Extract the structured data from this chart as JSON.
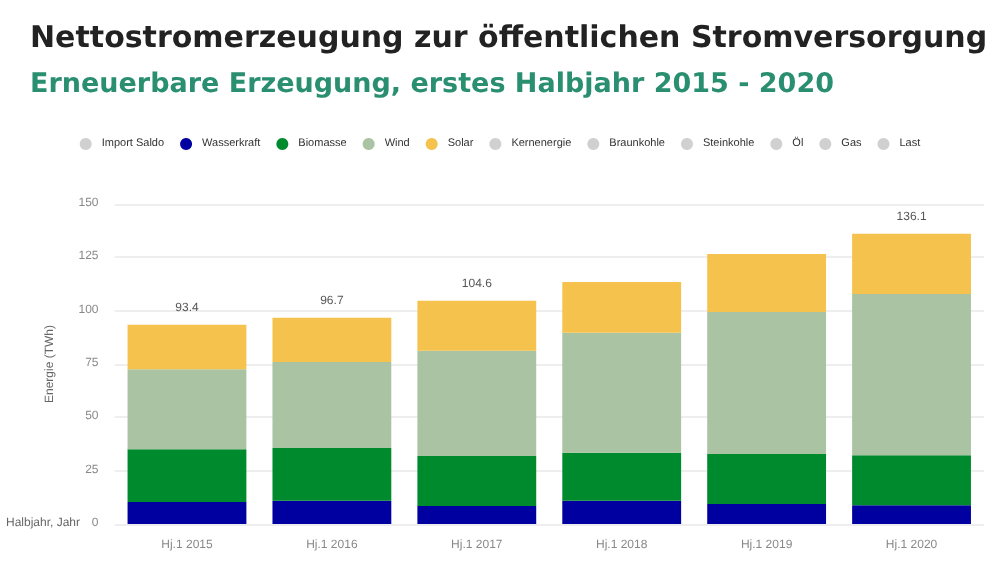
{
  "chart_data": {
    "type": "bar",
    "title": "Nettostromerzeugung zur öffentlichen Stromversorgung",
    "subtitle": "Erneuerbare Erzeugung, erstes Halbjahr 2015 - 2020",
    "xlabel": "Halbjahr, Jahr",
    "ylabel": "Energie (TWh)",
    "categories": [
      "Hj.1 2015",
      "Hj.1 2016",
      "Hj.1 2017",
      "Hj.1 2018",
      "Hj.1 2019",
      "Hj.1 2020"
    ],
    "series": [
      {
        "name": "Import Saldo",
        "color": "#d0d0d0",
        "values": [
          null,
          null,
          null,
          null,
          null,
          null
        ]
      },
      {
        "name": "Wasserkraft",
        "color": "#0000a0",
        "values": [
          10.3,
          10.9,
          8.4,
          10.9,
          9.4,
          8.8
        ]
      },
      {
        "name": "Biomasse",
        "color": "#008a2e",
        "values": [
          24.7,
          24.7,
          23.5,
          22.5,
          23.4,
          23.4
        ]
      },
      {
        "name": "Wind",
        "color": "#aac3a3",
        "values": [
          37.5,
          40.3,
          49.3,
          56.3,
          66.6,
          75.6
        ]
      },
      {
        "name": "Solar",
        "color": "#f6c24e",
        "values": [
          20.9,
          20.8,
          23.4,
          23.7,
          27.2,
          28.3
        ]
      },
      {
        "name": "Kernenergie",
        "color": "#d0d0d0",
        "values": [
          null,
          null,
          null,
          null,
          null,
          null
        ]
      },
      {
        "name": "Braunkohle",
        "color": "#d0d0d0",
        "values": [
          null,
          null,
          null,
          null,
          null,
          null
        ]
      },
      {
        "name": "Steinkohle",
        "color": "#d0d0d0",
        "values": [
          null,
          null,
          null,
          null,
          null,
          null
        ]
      },
      {
        "name": "Öl",
        "color": "#d0d0d0",
        "values": [
          null,
          null,
          null,
          null,
          null,
          null
        ]
      },
      {
        "name": "Gas",
        "color": "#d0d0d0",
        "values": [
          null,
          null,
          null,
          null,
          null,
          null
        ]
      },
      {
        "name": "Last",
        "color": "#d0d0d0",
        "values": [
          null,
          null,
          null,
          null,
          null,
          null
        ]
      }
    ],
    "stacked": true,
    "totals": [
      "93.4",
      "96.7",
      "104.6",
      null,
      null,
      "136.1"
    ],
    "ylim": [
      0,
      150
    ],
    "yticks": [
      0,
      25,
      50,
      75,
      100,
      125,
      150
    ],
    "grid": "y",
    "legend": "top"
  }
}
